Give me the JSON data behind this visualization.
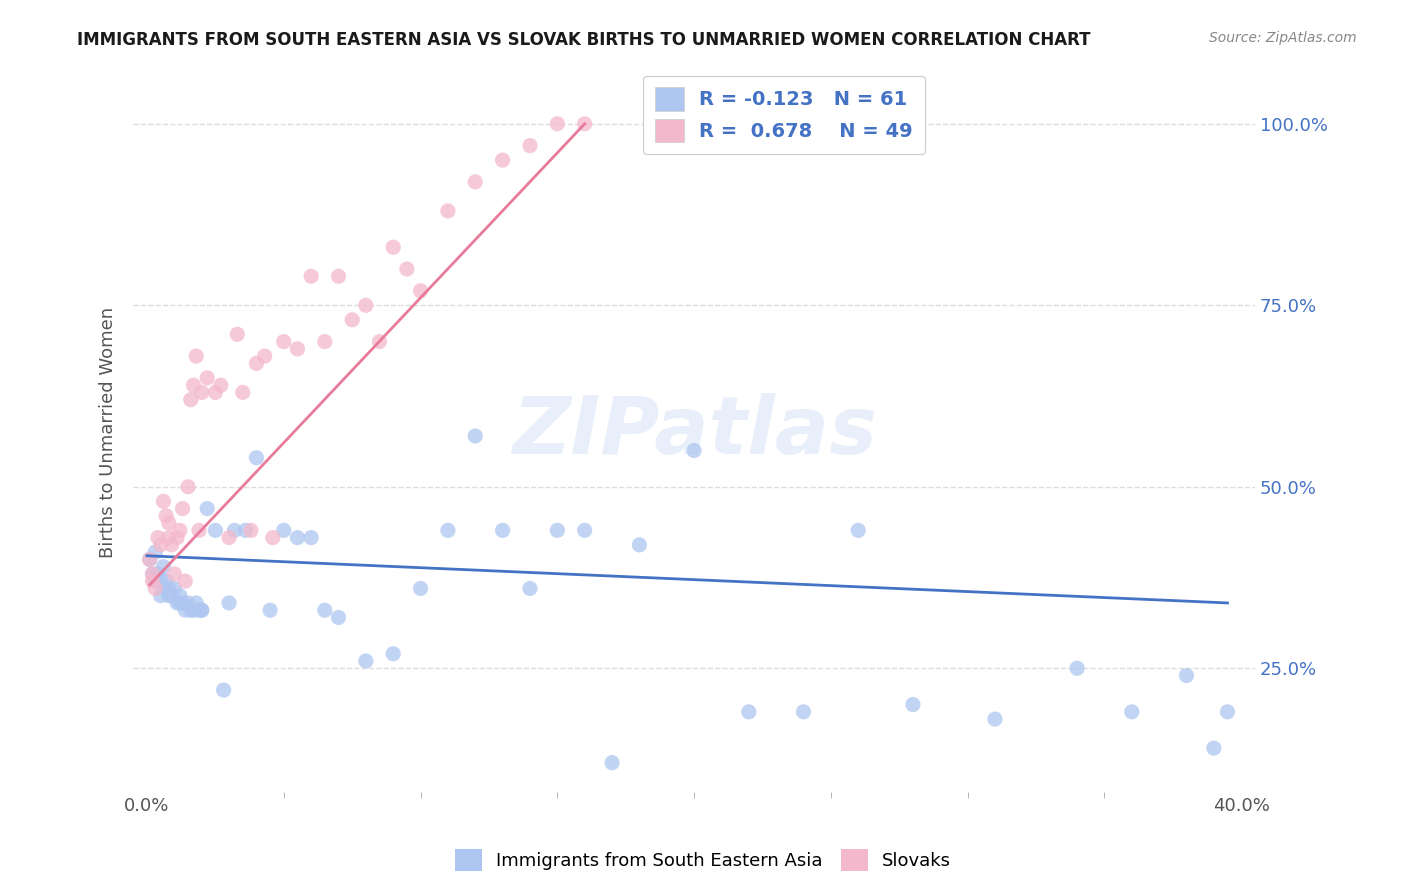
{
  "title": "IMMIGRANTS FROM SOUTH EASTERN ASIA VS SLOVAK BIRTHS TO UNMARRIED WOMEN CORRELATION CHART",
  "source": "Source: ZipAtlas.com",
  "ylabel": "Births to Unmarried Women",
  "ytick_labels": [
    "25.0%",
    "50.0%",
    "75.0%",
    "100.0%"
  ],
  "legend_entries": [
    {
      "label": "Immigrants from South Eastern Asia",
      "color": "#aec6f0",
      "line_color": "#4472c4",
      "R": "-0.123",
      "N": "61"
    },
    {
      "label": "Slovaks",
      "color": "#f4b8cc",
      "line_color": "#e87a9a",
      "R": "0.678",
      "N": "49"
    }
  ],
  "watermark": "ZIPatlas",
  "blue_scatter_x": [
    0.001,
    0.002,
    0.003,
    0.003,
    0.004,
    0.005,
    0.006,
    0.006,
    0.007,
    0.008,
    0.009,
    0.01,
    0.011,
    0.012,
    0.013,
    0.014,
    0.015,
    0.016,
    0.017,
    0.018,
    0.019,
    0.02,
    0.022,
    0.025,
    0.028,
    0.032,
    0.036,
    0.04,
    0.045,
    0.05,
    0.055,
    0.06,
    0.065,
    0.07,
    0.08,
    0.09,
    0.1,
    0.11,
    0.12,
    0.13,
    0.14,
    0.15,
    0.16,
    0.17,
    0.18,
    0.2,
    0.22,
    0.24,
    0.26,
    0.28,
    0.31,
    0.34,
    0.36,
    0.38,
    0.39,
    0.395,
    0.005,
    0.008,
    0.012,
    0.02,
    0.03
  ],
  "blue_scatter_y": [
    0.4,
    0.38,
    0.37,
    0.41,
    0.38,
    0.37,
    0.39,
    0.36,
    0.37,
    0.36,
    0.35,
    0.36,
    0.34,
    0.35,
    0.34,
    0.33,
    0.34,
    0.33,
    0.33,
    0.34,
    0.33,
    0.33,
    0.47,
    0.44,
    0.22,
    0.44,
    0.44,
    0.54,
    0.33,
    0.44,
    0.43,
    0.43,
    0.33,
    0.32,
    0.26,
    0.27,
    0.36,
    0.44,
    0.57,
    0.44,
    0.36,
    0.44,
    0.44,
    0.12,
    0.42,
    0.55,
    0.19,
    0.19,
    0.44,
    0.2,
    0.18,
    0.25,
    0.19,
    0.24,
    0.14,
    0.19,
    0.35,
    0.35,
    0.34,
    0.33,
    0.34
  ],
  "pink_scatter_x": [
    0.001,
    0.002,
    0.002,
    0.003,
    0.004,
    0.005,
    0.006,
    0.007,
    0.008,
    0.008,
    0.009,
    0.01,
    0.011,
    0.012,
    0.013,
    0.014,
    0.015,
    0.016,
    0.017,
    0.018,
    0.019,
    0.02,
    0.022,
    0.025,
    0.027,
    0.03,
    0.033,
    0.035,
    0.038,
    0.04,
    0.043,
    0.046,
    0.05,
    0.055,
    0.06,
    0.065,
    0.07,
    0.075,
    0.08,
    0.085,
    0.09,
    0.095,
    0.1,
    0.11,
    0.12,
    0.13,
    0.14,
    0.15,
    0.16
  ],
  "pink_scatter_y": [
    0.4,
    0.38,
    0.37,
    0.36,
    0.43,
    0.42,
    0.48,
    0.46,
    0.43,
    0.45,
    0.42,
    0.38,
    0.43,
    0.44,
    0.47,
    0.37,
    0.5,
    0.62,
    0.64,
    0.68,
    0.44,
    0.63,
    0.65,
    0.63,
    0.64,
    0.43,
    0.71,
    0.63,
    0.44,
    0.67,
    0.68,
    0.43,
    0.7,
    0.69,
    0.79,
    0.7,
    0.79,
    0.73,
    0.75,
    0.7,
    0.83,
    0.8,
    0.77,
    0.88,
    0.92,
    0.95,
    0.97,
    1.0,
    1.0
  ],
  "blue_line_x": [
    0.0,
    0.395
  ],
  "blue_line_y": [
    0.405,
    0.34
  ],
  "pink_line_x": [
    0.001,
    0.16
  ],
  "pink_line_y": [
    0.365,
    1.0
  ],
  "xlim": [
    -0.005,
    0.405
  ],
  "ylim": [
    0.08,
    1.07
  ],
  "ytick_positions": [
    0.25,
    0.5,
    0.75,
    1.0
  ],
  "scatter_size": 120,
  "scatter_alpha": 0.75
}
